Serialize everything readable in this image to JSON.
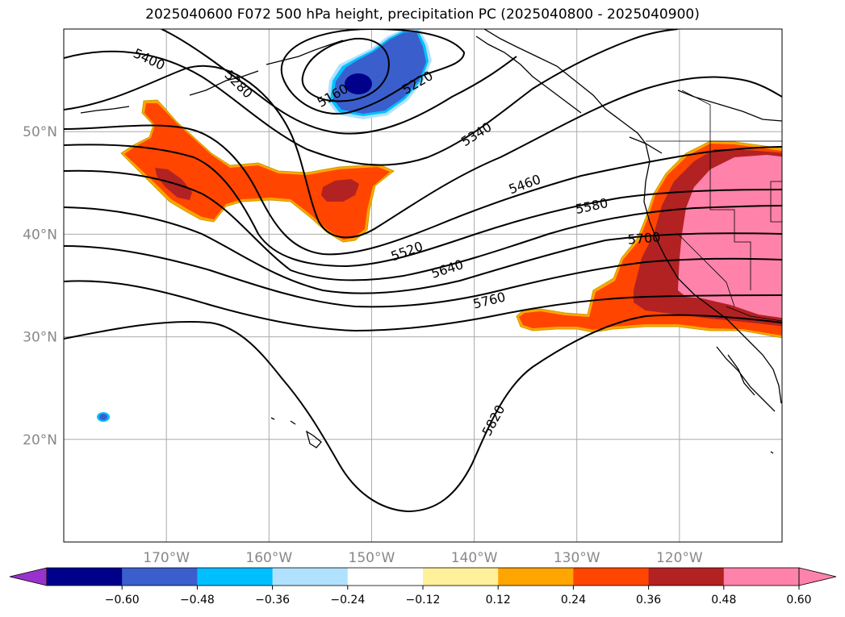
{
  "title": "2025040600 F072 500 hPa height, precipitation PC (2025040800 - 2025040900)",
  "map": {
    "projection": "equirectangular",
    "lon_range": [
      -180,
      -110
    ],
    "lat_range": [
      10,
      60
    ],
    "lat_ticks": [
      {
        "value": 50,
        "label": "50°N"
      },
      {
        "value": 40,
        "label": "40°N"
      },
      {
        "value": 30,
        "label": "30°N"
      },
      {
        "value": 20,
        "label": "20°N"
      }
    ],
    "lon_ticks": [
      {
        "value": -170,
        "label": "170°W"
      },
      {
        "value": -160,
        "label": "160°W"
      },
      {
        "value": -150,
        "label": "150°W"
      },
      {
        "value": -140,
        "label": "140°W"
      },
      {
        "value": -130,
        "label": "130°W"
      },
      {
        "value": -120,
        "label": "120°W"
      }
    ],
    "grid": true,
    "contour_labels": [
      "5400",
      "5280",
      "5160",
      "5220",
      "5340",
      "5460",
      "5580",
      "5700",
      "5520",
      "5640",
      "5760",
      "5820"
    ]
  },
  "colorbar": {
    "colors": [
      "#9932cc",
      "#00008b",
      "#3a5fcd",
      "#00bfff",
      "#b0e2ff",
      "#ffffff",
      "#fff09a",
      "#ffa500",
      "#ff4500",
      "#b22222",
      "#ff82ab",
      "#ff82ab"
    ],
    "labels": [
      "−0.60",
      "−0.48",
      "−0.36",
      "−0.24",
      "−0.12",
      "0.12",
      "0.24",
      "0.36",
      "0.48",
      "0.60"
    ],
    "extend": "both"
  }
}
